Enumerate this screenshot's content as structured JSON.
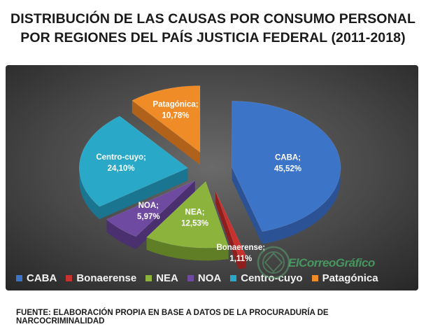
{
  "title_lines": [
    "DISTRIBUCIÓN DE LAS CAUSAS POR CONSUMO PERSONAL",
    "POR REGIONES DEL PAÍS JUSTICIA FEDERAL (2011-2018)"
  ],
  "chart_data": {
    "type": "pie",
    "title": "DISTRIBUCIÓN DE LAS CAUSAS POR CONSUMO PERSONAL POR REGIONES DEL PAÍS JUSTICIA FEDERAL (2011-2018)",
    "unit": "%",
    "exploded_3d": true,
    "legend_position": "bottom",
    "slices": [
      {
        "name": "CABA",
        "value": 45.52,
        "label": "CABA;\n45,52%",
        "color": "#3c74c8",
        "side_color": "#2a5294"
      },
      {
        "name": "Bonaerense",
        "value": 1.11,
        "label": "Bonaerense;\n1,11%",
        "color": "#c8322e",
        "side_color": "#8e1f1d"
      },
      {
        "name": "NEA",
        "value": 12.53,
        "label": "NEA;\n12,53%",
        "color": "#8cb43c",
        "side_color": "#5f7e25"
      },
      {
        "name": "NOA",
        "value": 5.97,
        "label": "NOA;\n5,97%",
        "color": "#6e4aa0",
        "side_color": "#4b3070"
      },
      {
        "name": "Centro-cuyo",
        "value": 24.1,
        "label": "Centro-cuyo;\n24,10%",
        "color": "#2aa8c8",
        "side_color": "#1a7590"
      },
      {
        "name": "Patagónica",
        "value": 10.78,
        "label": "Patagónica;\n10,78%",
        "color": "#f08c28",
        "side_color": "#b0621a"
      }
    ]
  },
  "legend": [
    {
      "name": "CABA",
      "color": "#3c74c8"
    },
    {
      "name": "Bonaerense",
      "color": "#c8322e"
    },
    {
      "name": "NEA",
      "color": "#8cb43c"
    },
    {
      "name": "NOA",
      "color": "#6e4aa0"
    },
    {
      "name": "Centro-cuyo",
      "color": "#2aa8c8"
    },
    {
      "name": "Patagónica",
      "color": "#f08c28"
    }
  ],
  "watermark": "ElCorreoGráfico",
  "source": "FUENTE: ELABORACIÓN PROPIA EN BASE A DATOS DE LA PROCURADURÍA DE NARCOCRIMINALIDAD"
}
